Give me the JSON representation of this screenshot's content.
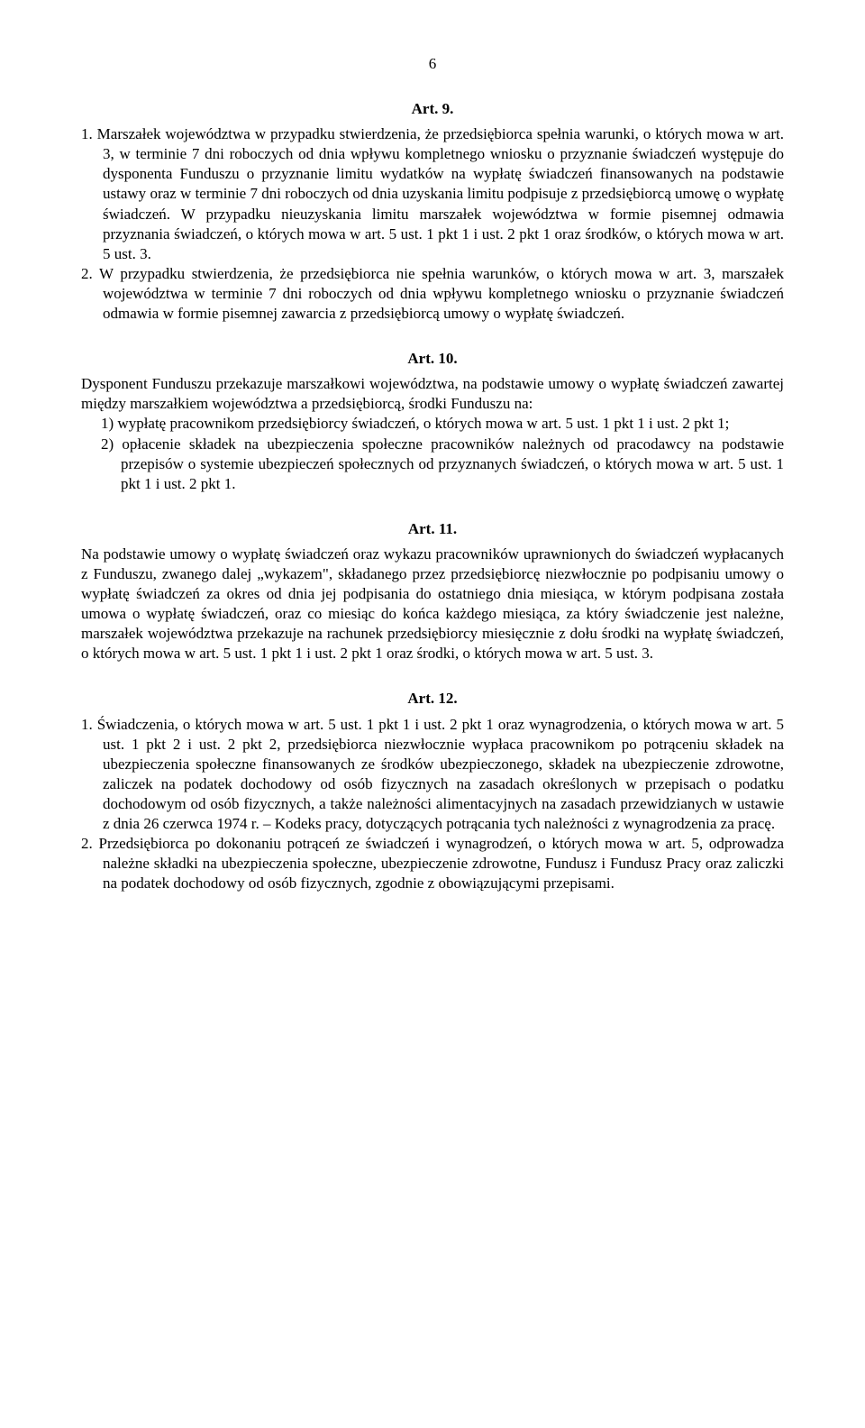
{
  "page_number": "6",
  "art9": {
    "heading": "Art. 9.",
    "p1": "1. Marszałek województwa w przypadku stwierdzenia, że przedsiębiorca spełnia warunki, o których mowa w art. 3, w terminie 7 dni roboczych od dnia wpływu kompletnego wniosku o przyznanie świadczeń występuje do dysponenta Funduszu o przyznanie limitu wydatków na wypłatę świadczeń finansowanych na podstawie ustawy oraz w terminie 7 dni roboczych od dnia uzyskania limitu podpisuje z przedsiębiorcą umowę o wypłatę świadczeń. W przypadku nieuzyskania limitu marszałek województwa w formie pisemnej odmawia przyznania świadczeń, o których mowa w art. 5 ust. 1 pkt 1 i ust. 2 pkt 1 oraz środków, o których mowa w art. 5 ust. 3.",
    "p2": "2. W przypadku stwierdzenia, że przedsiębiorca nie spełnia warunków, o których mowa w art. 3, marszałek województwa w terminie 7 dni roboczych od dnia wpływu kompletnego wniosku o przyznanie świadczeń odmawia w formie pisemnej zawarcia z przedsiębiorcą umowy o wypłatę świadczeń."
  },
  "art10": {
    "heading": "Art. 10.",
    "intro": "Dysponent Funduszu przekazuje marszałkowi województwa, na podstawie umowy o wypłatę świadczeń zawartej między marszałkiem województwa a przedsiębiorcą, środki Funduszu na:",
    "item1": "1) wypłatę pracownikom przedsiębiorcy świadczeń, o których mowa w art. 5 ust. 1 pkt 1 i ust. 2 pkt 1;",
    "item2": "2) opłacenie składek na ubezpieczenia społeczne pracowników należnych od pracodawcy na podstawie przepisów o systemie ubezpieczeń społecznych od przyznanych świadczeń, o których mowa w art. 5 ust. 1 pkt 1 i ust. 2 pkt 1."
  },
  "art11": {
    "heading": "Art. 11.",
    "body": "Na podstawie umowy o wypłatę świadczeń oraz wykazu pracowników uprawnionych do świadczeń wypłacanych z Funduszu, zwanego dalej „wykazem\", składanego przez przedsiębiorcę niezwłocznie po podpisaniu umowy o wypłatę świadczeń za okres od dnia jej podpisania do ostatniego dnia miesiąca, w którym podpisana została umowa o wypłatę świadczeń, oraz co miesiąc do końca każdego miesiąca, za który świadczenie jest należne, marszałek województwa przekazuje na rachunek przedsiębiorcy miesięcznie z dołu środki na wypłatę świadczeń, o których mowa w art. 5 ust. 1 pkt 1 i ust. 2 pkt 1 oraz środki, o których mowa w art. 5 ust. 3."
  },
  "art12": {
    "heading": "Art. 12.",
    "p1": "1. Świadczenia, o których mowa w art. 5 ust. 1 pkt 1 i ust. 2 pkt 1 oraz wynagrodzenia, o których mowa w art. 5 ust. 1 pkt 2 i ust. 2 pkt 2, przedsiębiorca niezwłocznie wypłaca pracownikom po potrąceniu składek na ubezpieczenia społeczne finansowanych ze środków ubezpieczonego, składek na ubezpieczenie zdrowotne, zaliczek na podatek dochodowy od osób fizycznych na zasadach określonych w przepisach o podatku dochodowym od osób fizycznych, a także należności alimentacyjnych na zasadach przewidzianych w ustawie z dnia 26 czerwca 1974 r. – Kodeks pracy, dotyczących potrącania tych należności z wynagrodzenia za pracę.",
    "p2": "2. Przedsiębiorca po dokonaniu potrąceń ze świadczeń i wynagrodzeń, o których mowa w art. 5, odprowadza należne składki na ubezpieczenia społeczne, ubezpieczenie zdrowotne, Fundusz i Fundusz Pracy oraz zaliczki na podatek dochodowy od osób fizycznych, zgodnie z obowiązującymi przepisami."
  }
}
